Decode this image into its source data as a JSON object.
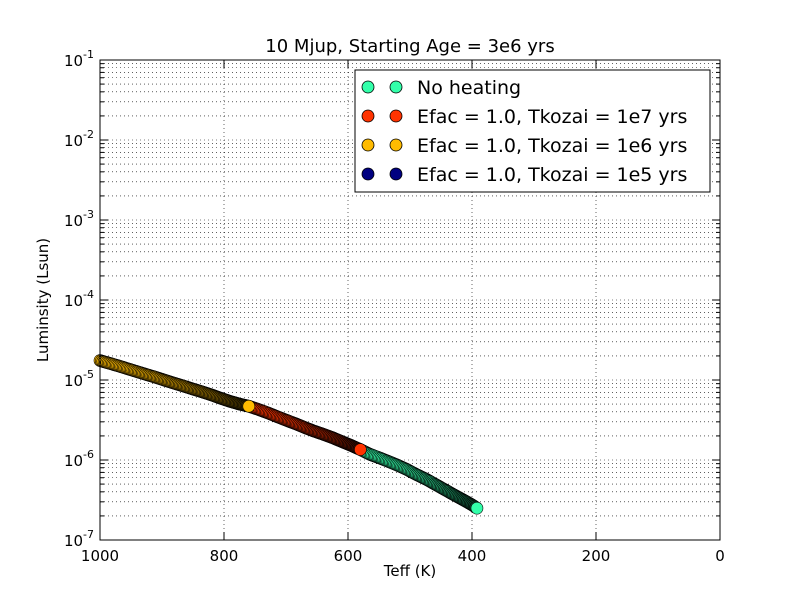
{
  "chart_data": {
    "type": "scatter",
    "title": "10 Mjup, Starting Age = 3e6 yrs",
    "xlabel": "Teff (K)",
    "ylabel": "Luminsity (Lsun)",
    "xlim": [
      1000,
      0
    ],
    "ylim": [
      1e-07,
      0.1
    ],
    "yscale": "log",
    "grid": true,
    "legend_position": "top-right",
    "x_ticks": [
      {
        "value": 1000,
        "label": "1000"
      },
      {
        "value": 800,
        "label": "800"
      },
      {
        "value": 600,
        "label": "600"
      },
      {
        "value": 400,
        "label": "400"
      },
      {
        "value": 200,
        "label": "200"
      },
      {
        "value": 0,
        "label": "0"
      }
    ],
    "y_ticks": [
      {
        "value": 1e-07,
        "base": "10",
        "exp": "-7"
      },
      {
        "value": 1e-06,
        "base": "10",
        "exp": "-6"
      },
      {
        "value": 1e-05,
        "base": "10",
        "exp": "-5"
      },
      {
        "value": 0.0001,
        "base": "10",
        "exp": "-4"
      },
      {
        "value": 0.001,
        "base": "10",
        "exp": "-3"
      },
      {
        "value": 0.01,
        "base": "10",
        "exp": "-2"
      },
      {
        "value": 0.1,
        "base": "10",
        "exp": "-1"
      }
    ],
    "series": [
      {
        "name": "No heating",
        "color": "#33ffaa",
        "points": [
          [
            580,
            1.35e-06
          ],
          [
            565,
            1.18e-06
          ],
          [
            550,
            1.07e-06
          ],
          [
            535,
            9.6e-07
          ],
          [
            520,
            8.6e-07
          ],
          [
            505,
            7.6e-07
          ],
          [
            490,
            6.6e-07
          ],
          [
            475,
            5.8e-07
          ],
          [
            460,
            5e-07
          ],
          [
            445,
            4.3e-07
          ],
          [
            430,
            3.7e-07
          ],
          [
            415,
            3.2e-07
          ],
          [
            400,
            2.75e-07
          ],
          [
            392,
            2.5e-07
          ]
        ]
      },
      {
        "name": "Efac = 1.0, Tkozai = 1e7 yrs",
        "color": "#ff3300",
        "points": [
          [
            760,
            4.7e-06
          ],
          [
            745,
            4.3e-06
          ],
          [
            730,
            3.9e-06
          ],
          [
            715,
            3.5e-06
          ],
          [
            700,
            3.15e-06
          ],
          [
            685,
            2.85e-06
          ],
          [
            670,
            2.55e-06
          ],
          [
            655,
            2.3e-06
          ],
          [
            640,
            2.1e-06
          ],
          [
            625,
            1.9e-06
          ],
          [
            610,
            1.7e-06
          ],
          [
            595,
            1.52e-06
          ],
          [
            580,
            1.35e-06
          ]
        ]
      },
      {
        "name": "Efac = 1.0, Tkozai = 1e6 yrs",
        "color": "#ffbb00",
        "points": [
          [
            1000,
            1.75e-05
          ],
          [
            985,
            1.62e-05
          ],
          [
            970,
            1.5e-05
          ],
          [
            955,
            1.38e-05
          ],
          [
            940,
            1.27e-05
          ],
          [
            925,
            1.17e-05
          ],
          [
            910,
            1.08e-05
          ],
          [
            895,
            9.9e-06
          ],
          [
            880,
            9.1e-06
          ],
          [
            865,
            8.4e-06
          ],
          [
            850,
            7.7e-06
          ],
          [
            835,
            7.1e-06
          ],
          [
            820,
            6.5e-06
          ],
          [
            805,
            5.9e-06
          ],
          [
            790,
            5.4e-06
          ],
          [
            775,
            5e-06
          ],
          [
            760,
            4.7e-06
          ]
        ]
      },
      {
        "name": "Efac = 1.0, Tkozai = 1e5 yrs",
        "color": "#000080",
        "points": []
      }
    ]
  }
}
